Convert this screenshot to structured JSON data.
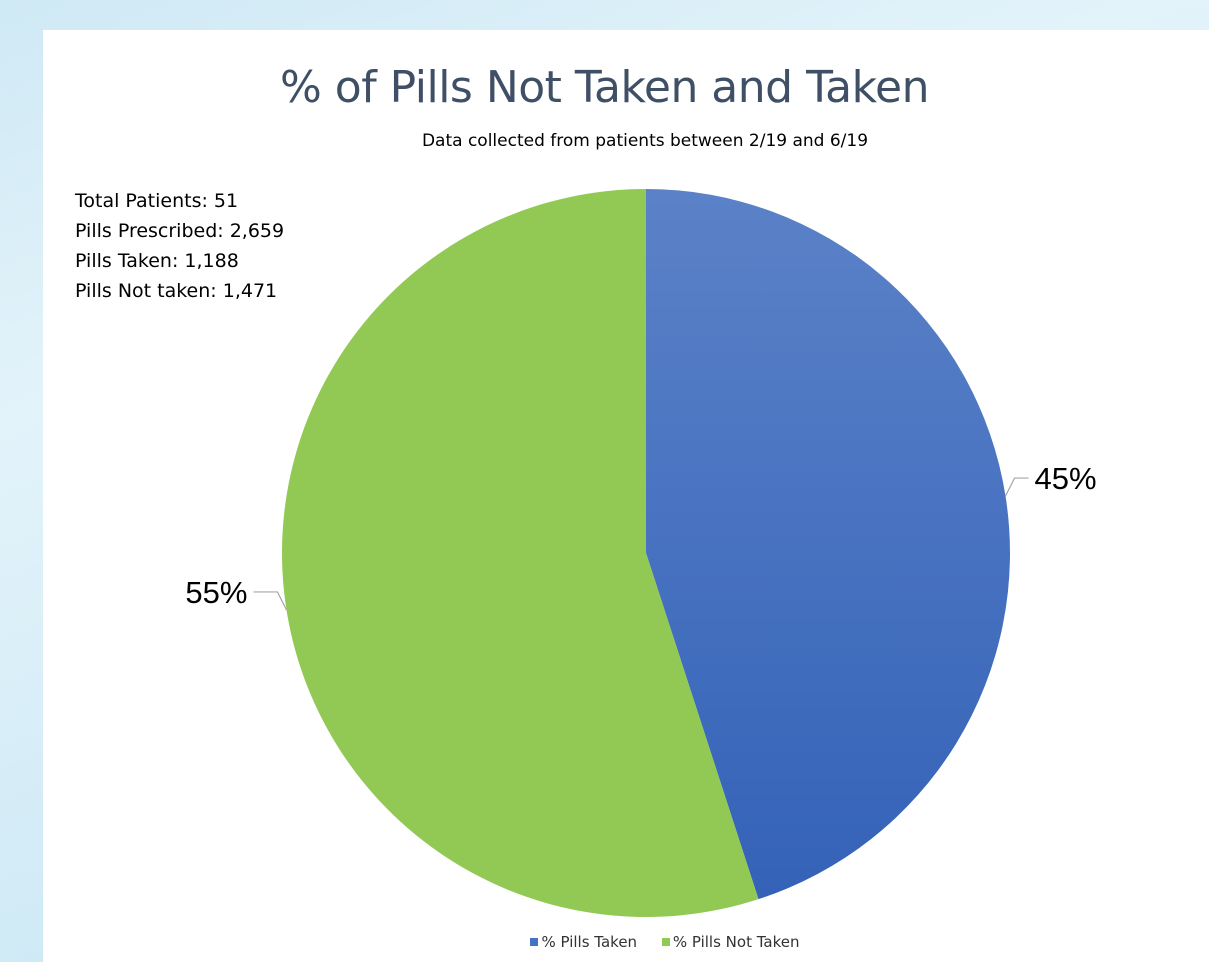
{
  "colors": {
    "taken": "#4472c4",
    "not_taken": "#92c955",
    "title": "#3f4f66"
  },
  "stats": {
    "total_patients": "Total Patients: 51",
    "pills_prescribed": "Pills Prescribed: 2,659",
    "pills_taken": "Pills Taken: 1,188",
    "pills_not_taken": "Pills Not taken: 1,471"
  },
  "chart_data": {
    "type": "pie",
    "title": "% of Pills Not Taken and Taken",
    "subtitle": "Data collected from patients between 2/19 and 6/19",
    "categories": [
      "% Pills Taken",
      "% Pills Not Taken"
    ],
    "values": [
      45,
      55
    ],
    "data_labels": [
      "45%",
      "55%"
    ],
    "start_angle": "12 o'clock, clockwise",
    "legend": {
      "position": "bottom",
      "entries": [
        "% Pills Taken",
        "% Pills Not Taken"
      ]
    }
  }
}
